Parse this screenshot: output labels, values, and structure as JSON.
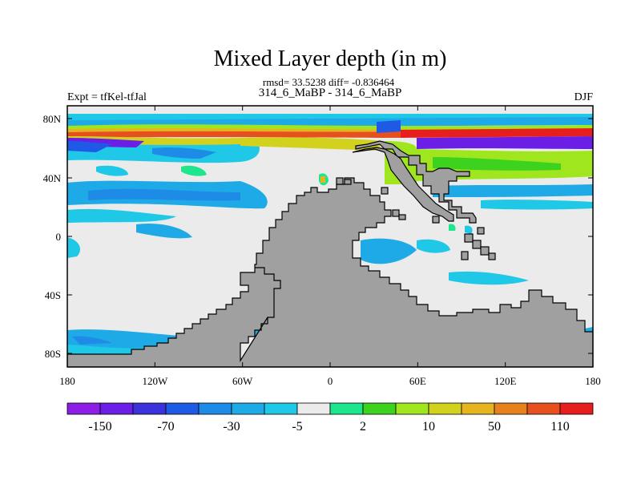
{
  "title": "Mixed Layer depth (in m)",
  "stats_line": "rmsd= 33.5238 diff= -0.836464",
  "subtitle": "314_6_MaBP - 314_6_MaBP",
  "left_label": "Expt = tfKel-tfJal",
  "right_label": "DJF",
  "x_ticks": [
    "180",
    "120W",
    "60W",
    "0",
    "60E",
    "120E",
    "180"
  ],
  "y_ticks": [
    "80N",
    "40N",
    "0",
    "40S",
    "80S"
  ],
  "colorbar": {
    "colors": [
      "#8c1ee6",
      "#6a1ee6",
      "#3c32dc",
      "#1e5ae6",
      "#1e8ce6",
      "#1eaae6",
      "#1ec8e6",
      "#ebebeb",
      "#1ee68c",
      "#3cd21e",
      "#a0e61e",
      "#d2d21e",
      "#e6b41e",
      "#e6821e",
      "#e6501e",
      "#e61e1e"
    ],
    "labels": [
      "-150",
      "-70",
      "-30",
      "-5",
      "2",
      "10",
      "50",
      "110"
    ]
  },
  "colors": {
    "land": "#a0a0a0",
    "zero_band": "#ebebeb"
  }
}
